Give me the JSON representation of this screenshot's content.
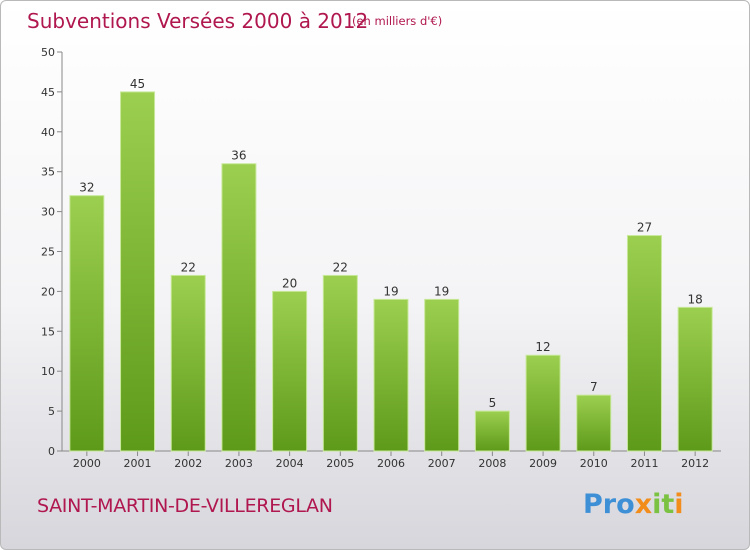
{
  "chart_data": {
    "type": "bar",
    "title": "Subventions Versées 2000 à 2012",
    "subtitle": "(en milliers d'€)",
    "xlabel": "",
    "ylabel": "",
    "categories": [
      "2000",
      "2001",
      "2002",
      "2003",
      "2004",
      "2005",
      "2006",
      "2007",
      "2008",
      "2009",
      "2010",
      "2011",
      "2012"
    ],
    "values": [
      32,
      45,
      22,
      36,
      20,
      22,
      19,
      19,
      5,
      12,
      7,
      27,
      18
    ],
    "ylim": [
      0,
      50
    ],
    "yticks": [
      0,
      5,
      10,
      15,
      20,
      25,
      30,
      35,
      40,
      45,
      50
    ],
    "grid": false,
    "bar_color": "#7fbf36"
  },
  "footer": {
    "commune": "SAINT-MARTIN-DE-VILLEREGLAN",
    "logo_letters": [
      {
        "char": "P",
        "color": "#3d8fd6"
      },
      {
        "char": "r",
        "color": "#3d8fd6"
      },
      {
        "char": "o",
        "color": "#3d8fd6"
      },
      {
        "char": "x",
        "color": "#f28c1a"
      },
      {
        "char": "i",
        "color": "#7cc242"
      },
      {
        "char": "t",
        "color": "#7cc242"
      },
      {
        "char": "i",
        "color": "#f28c1a"
      }
    ]
  }
}
